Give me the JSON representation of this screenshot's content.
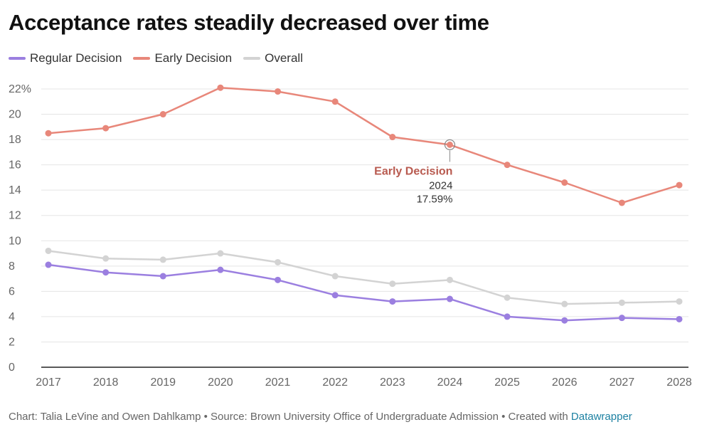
{
  "header": {
    "title": "Acceptance rates steadily decreased over time"
  },
  "legend": [
    {
      "label": "Regular Decision",
      "color": "#9b7fe0"
    },
    {
      "label": "Early Decision",
      "color": "#e8877a"
    },
    {
      "label": "Overall",
      "color": "#d3d3d3"
    }
  ],
  "chart_data": {
    "type": "line",
    "title": "Acceptance rates steadily decreased over time",
    "xlabel": "",
    "ylabel": "",
    "x": [
      2017,
      2018,
      2019,
      2020,
      2021,
      2022,
      2023,
      2024,
      2025,
      2026,
      2027,
      2028
    ],
    "ylim": [
      0,
      22
    ],
    "yticks": [
      0,
      2,
      4,
      6,
      8,
      10,
      12,
      14,
      16,
      18,
      20,
      22
    ],
    "ytick_labels": [
      "0",
      "2",
      "4",
      "6",
      "8",
      "10",
      "12",
      "14",
      "16",
      "18",
      "20",
      "22%"
    ],
    "grid": true,
    "legend_position": "top-left",
    "series": [
      {
        "name": "Regular Decision",
        "color": "#9b7fe0",
        "values": [
          8.1,
          7.5,
          7.2,
          7.7,
          6.9,
          5.7,
          5.2,
          5.4,
          4.0,
          3.7,
          3.9,
          3.8
        ]
      },
      {
        "name": "Early Decision",
        "color": "#e8877a",
        "values": [
          18.5,
          18.9,
          20.0,
          22.1,
          21.8,
          21.0,
          18.2,
          17.59,
          16.0,
          14.6,
          13.0,
          14.4
        ]
      },
      {
        "name": "Overall",
        "color": "#d3d3d3",
        "values": [
          9.2,
          8.6,
          8.5,
          9.0,
          8.3,
          7.2,
          6.6,
          6.9,
          5.5,
          5.0,
          5.1,
          5.2
        ]
      }
    ],
    "annotation": {
      "series": "Early Decision",
      "x": 2024,
      "value": 17.59,
      "label": "Early Decision",
      "year_text": "2024",
      "value_text": "17.59%",
      "color": "#b85a4f"
    }
  },
  "footer": {
    "prefix": "Chart: Talia LeVine and Owen Dahlkamp • Source: Brown University Office of Undergraduate Admission • Created with ",
    "link": "Datawrapper"
  }
}
